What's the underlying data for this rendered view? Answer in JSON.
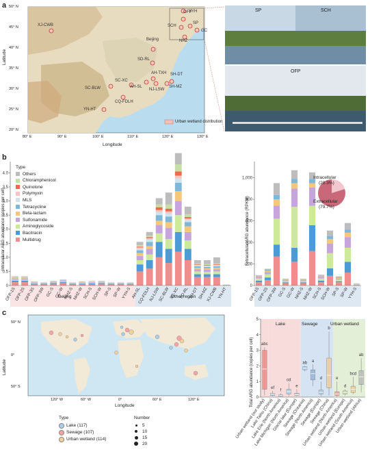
{
  "panels": {
    "a": "a",
    "b": "b",
    "c": "c"
  },
  "panel_a": {
    "lat_ticks": [
      "50° N",
      "45° N",
      "40° N",
      "35° N",
      "30° N",
      "25° N",
      "20° N"
    ],
    "lon_ticks": [
      "80° E",
      "90° E",
      "100° E",
      "110° E",
      "120° E",
      "130° E"
    ],
    "ylabel": "Latitude",
    "xlabel": "Longitude",
    "legend": "Urban wetland distribution",
    "sites": [
      "XJ-CWB",
      "Beijing",
      "SD-RL",
      "SC-XC",
      "SC-BLW",
      "CQ-FDLH",
      "AH-TXH",
      "AH-SL",
      "NJ-LSW",
      "SH-DT",
      "SH-MZ",
      "YN-HT",
      "YYH",
      "OFP",
      "SCH",
      "SP",
      "GC",
      "NHZ"
    ],
    "photos": {
      "sp": "SP",
      "sch": "SCH",
      "ofp": "OFP"
    }
  },
  "panel_b_left": {
    "ylabel": "Intracellular ARG abundance (copies per cell)",
    "yticks": [
      "0",
      "0.5",
      "1.0",
      "1.5",
      "2.0",
      "2.5",
      "3.0",
      "3.5",
      "4.0"
    ],
    "legend_title": "Type",
    "legend": [
      {
        "name": "Others",
        "color": "#bdbdbd"
      },
      {
        "name": "Chloramphenicol",
        "color": "#c7dfa6"
      },
      {
        "name": "Quinolone",
        "color": "#ef6a4c"
      },
      {
        "name": "Polymyxin",
        "color": "#f5c6c2"
      },
      {
        "name": "MLS",
        "color": "#cfe3ee"
      },
      {
        "name": "Tetracycline",
        "color": "#7fb7da"
      },
      {
        "name": "Beta-lactam",
        "color": "#f4c77a"
      },
      {
        "name": "Sulfonamide",
        "color": "#c6a5dc"
      },
      {
        "name": "Aminoglycoside",
        "color": "#cde99a"
      },
      {
        "name": "Bacitracin",
        "color": "#4d9bd6"
      },
      {
        "name": "Multidrug",
        "color": "#ef8e8c"
      }
    ],
    "group_labels": [
      "Beijing",
      "Other region"
    ]
  },
  "panel_b_right": {
    "ylabel": "Extracellular ARG abundance (RPKM)",
    "yticks": [
      "0",
      "200",
      "400",
      "600",
      "800",
      "1,000"
    ],
    "pie": {
      "intracellular_label": "Intracellular",
      "intracellular_pct": "(20.3%)",
      "extracellular_label": "Extracellular",
      "extracellular_pct": "(79.7%)",
      "intracellular_value": 20.3
    }
  },
  "panel_c_map": {
    "lat_ticks": [
      "50° N",
      "0°",
      "50° S"
    ],
    "lon_ticks": [
      "120° W",
      "60° W",
      "0°",
      "60° E",
      "120° E"
    ],
    "ylabel": "Latitude",
    "xlabel": "Longitude",
    "type_title": "Type",
    "types": [
      {
        "name": "Lake (117)",
        "color": "#a9cfe6"
      },
      {
        "name": "Sewage (107)",
        "color": "#f4a4a4"
      },
      {
        "name": "Urban wetland (114)",
        "color": "#f2cf9b"
      }
    ],
    "number_title": "Number",
    "numbers": [
      "5",
      "10",
      "15",
      "20"
    ]
  },
  "panel_c_box": {
    "ylabel": "Total ARG abundance (copies per cell)",
    "yticks": [
      "0",
      "1",
      "2",
      "3",
      "4",
      "5"
    ],
    "groups": [
      {
        "name": "Lake",
        "color": "#f8dcdc"
      },
      {
        "name": "Sewage",
        "color": "#d6e3f3"
      },
      {
        "name": "Urban wetland",
        "color": "#e4efd8"
      }
    ]
  },
  "chart_data": [
    {
      "type": "bar",
      "ylabel": "Intracellular ARG abundance (copies per cell)",
      "ylim": [
        0,
        4.4
      ],
      "categories": [
        "OFP-1S",
        "OFP-2S",
        "OFP-3S",
        "OFP-3W",
        "GC-S",
        "GC-W",
        "NHZ-S",
        "NHZ-W",
        "SCH-S",
        "SCH-W",
        "SP-S",
        "SP-W",
        "YYH-S",
        "AH-SL",
        "CQ-FDLH",
        "NJ-LSW",
        "SC-BLW",
        "SC-XC",
        "SD-RL",
        "SH-DT",
        "SH-MZ",
        "XJ-CWB",
        "YN-HT"
      ],
      "series": [
        {
          "name": "Multidrug",
          "values": [
            0.12,
            0.12,
            0.05,
            0.04,
            0.06,
            0.08,
            0.04,
            0.05,
            0.05,
            0.06,
            0.04,
            0.04,
            0.04,
            0.5,
            0.6,
            1.0,
            0.8,
            1.2,
            0.9,
            0.3,
            0.3,
            0.3,
            0.01
          ]
        },
        {
          "name": "Bacitracin",
          "values": [
            0.05,
            0.05,
            0.02,
            0.02,
            0.03,
            0.04,
            0.02,
            0.02,
            0.03,
            0.03,
            0.02,
            0.02,
            0.02,
            0.25,
            0.3,
            0.55,
            0.5,
            0.7,
            0.4,
            0.1,
            0.1,
            0.1,
            0.01
          ]
        },
        {
          "name": "Aminoglycoside",
          "values": [
            0.03,
            0.03,
            0.02,
            0.01,
            0.02,
            0.03,
            0.01,
            0.02,
            0.02,
            0.02,
            0.01,
            0.01,
            0.01,
            0.15,
            0.2,
            0.3,
            0.35,
            0.6,
            0.3,
            0.1,
            0.08,
            0.1,
            0.005
          ]
        },
        {
          "name": "Sulfonamide",
          "values": [
            0.04,
            0.04,
            0.02,
            0.01,
            0.02,
            0.03,
            0.01,
            0.02,
            0.02,
            0.02,
            0.01,
            0.01,
            0.01,
            0.15,
            0.2,
            0.3,
            0.4,
            0.5,
            0.3,
            0.08,
            0.08,
            0.08,
            0.005
          ]
        },
        {
          "name": "Beta-lactam",
          "values": [
            0.02,
            0.02,
            0.01,
            0.01,
            0.01,
            0.01,
            0.01,
            0.01,
            0.01,
            0.01,
            0.01,
            0.01,
            0.01,
            0.1,
            0.1,
            0.15,
            0.2,
            0.35,
            0.2,
            0.05,
            0.05,
            0.05,
            0.0
          ]
        },
        {
          "name": "Tetracycline",
          "values": [
            0.02,
            0.02,
            0.01,
            0.01,
            0.01,
            0.01,
            0.01,
            0.01,
            0.01,
            0.01,
            0.01,
            0.01,
            0.01,
            0.1,
            0.15,
            0.2,
            0.2,
            0.3,
            0.15,
            0.05,
            0.05,
            0.05,
            0.0
          ]
        },
        {
          "name": "MLS",
          "values": [
            0.01,
            0.01,
            0.01,
            0.0,
            0.01,
            0.01,
            0.0,
            0.01,
            0.01,
            0.01,
            0.0,
            0.0,
            0.0,
            0.05,
            0.08,
            0.1,
            0.1,
            0.15,
            0.08,
            0.03,
            0.03,
            0.03,
            0.0
          ]
        },
        {
          "name": "Polymyxin",
          "values": [
            0.01,
            0.01,
            0.0,
            0.0,
            0.0,
            0.0,
            0.0,
            0.0,
            0.0,
            0.0,
            0.0,
            0.0,
            0.0,
            0.05,
            0.05,
            0.08,
            0.08,
            0.1,
            0.05,
            0.02,
            0.02,
            0.02,
            0.0
          ]
        },
        {
          "name": "Quinolone",
          "values": [
            0.0,
            0.0,
            0.0,
            0.0,
            0.0,
            0.0,
            0.0,
            0.0,
            0.0,
            0.0,
            0.0,
            0.0,
            0.0,
            0.03,
            0.04,
            0.1,
            0.1,
            0.15,
            0.05,
            0.02,
            0.02,
            0.02,
            0.0
          ]
        },
        {
          "name": "Chloramphenicol",
          "values": [
            0.01,
            0.01,
            0.0,
            0.0,
            0.0,
            0.0,
            0.0,
            0.0,
            0.0,
            0.0,
            0.0,
            0.0,
            0.0,
            0.05,
            0.05,
            0.1,
            0.15,
            0.25,
            0.1,
            0.03,
            0.03,
            0.03,
            0.0
          ]
        },
        {
          "name": "Others",
          "values": [
            0.02,
            0.02,
            0.01,
            0.01,
            0.01,
            0.01,
            0.01,
            0.01,
            0.01,
            0.01,
            0.01,
            0.01,
            0.01,
            0.12,
            0.13,
            0.22,
            0.42,
            0.4,
            0.27,
            0.12,
            0.14,
            0.22,
            0.0
          ]
        }
      ]
    },
    {
      "type": "bar",
      "ylabel": "Extracellular ARG abundance (RPKM)",
      "ylim": [
        0,
        1150
      ],
      "categories": [
        "OFP-1S",
        "OFP-2S",
        "OFP-3W",
        "GC-S",
        "GC-W",
        "NHZ-S",
        "NHZ-W",
        "SCH-S",
        "SCH-W",
        "SP-S",
        "SP-W",
        "YYH-S"
      ],
      "series": [
        {
          "name": "Multidrug",
          "values": [
            30,
            50,
            270,
            20,
            220,
            20,
            320,
            30,
            90,
            30,
            120,
            5
          ]
        },
        {
          "name": "Bacitracin",
          "values": [
            15,
            25,
            110,
            10,
            130,
            10,
            240,
            15,
            70,
            10,
            100,
            3
          ]
        },
        {
          "name": "Aminoglycoside",
          "values": [
            20,
            30,
            240,
            10,
            380,
            10,
            180,
            20,
            140,
            15,
            130,
            4
          ]
        },
        {
          "name": "Sulfonamide",
          "values": [
            15,
            20,
            120,
            10,
            170,
            10,
            170,
            15,
            90,
            10,
            100,
            3
          ]
        },
        {
          "name": "Beta-lactam",
          "values": [
            5,
            10,
            60,
            5,
            50,
            5,
            40,
            5,
            40,
            5,
            40,
            2
          ]
        },
        {
          "name": "Tetracycline",
          "values": [
            5,
            10,
            40,
            3,
            40,
            3,
            40,
            5,
            30,
            5,
            30,
            1
          ]
        },
        {
          "name": "Others",
          "values": [
            5,
            10,
            110,
            5,
            80,
            5,
            60,
            10,
            50,
            10,
            60,
            2
          ]
        }
      ]
    },
    {
      "type": "pie",
      "categories": [
        "Intracellular",
        "Extracellular"
      ],
      "values": [
        20.3,
        79.7
      ]
    },
    {
      "type": "box",
      "ylabel": "Total ARG abundance (copies per cell)",
      "ylim": [
        0,
        5
      ],
      "categories": [
        "Urban wetland (our study)",
        "Lake Taihu (China)",
        "Lake Erie (North America)",
        "Lake Michigan (North America)",
        "Glacial lake (Europe)",
        "Sewage (Oceania)",
        "Sewage (North America)",
        "Sewage (Europe)",
        "Sewage (China)",
        "Urban wetland (North America)",
        "Urban wetland (Europe)",
        "Urban wetland (South America)",
        "Urban wetland (Africa)"
      ],
      "letters": [
        "abc",
        "ef",
        "f",
        "cd",
        "e",
        "ab",
        "a",
        "d",
        "b",
        "e",
        "d",
        "bcd",
        "ab"
      ],
      "q1": [
        0.5,
        0.1,
        0.05,
        0.2,
        0.1,
        1.75,
        1.1,
        0.2,
        0.6,
        0.1,
        0.2,
        0.3,
        0.8
      ],
      "median": [
        1.8,
        0.2,
        0.1,
        0.35,
        0.15,
        1.85,
        1.5,
        0.3,
        1.4,
        0.2,
        0.3,
        0.5,
        1.3
      ],
      "q3": [
        3.0,
        0.25,
        0.15,
        0.5,
        0.25,
        1.95,
        1.75,
        0.45,
        2.5,
        0.35,
        0.4,
        0.7,
        1.7
      ],
      "whisker_low": [
        0.1,
        0.05,
        0.02,
        0.05,
        0.05,
        1.65,
        0.7,
        0.05,
        0.1,
        0.02,
        0.1,
        0.2,
        0.3
      ],
      "whisker_high": [
        3.2,
        0.4,
        0.25,
        0.9,
        0.5,
        2.0,
        2.1,
        1.0,
        4.2,
        1.0,
        0.5,
        1.3,
        2.5
      ]
    }
  ]
}
